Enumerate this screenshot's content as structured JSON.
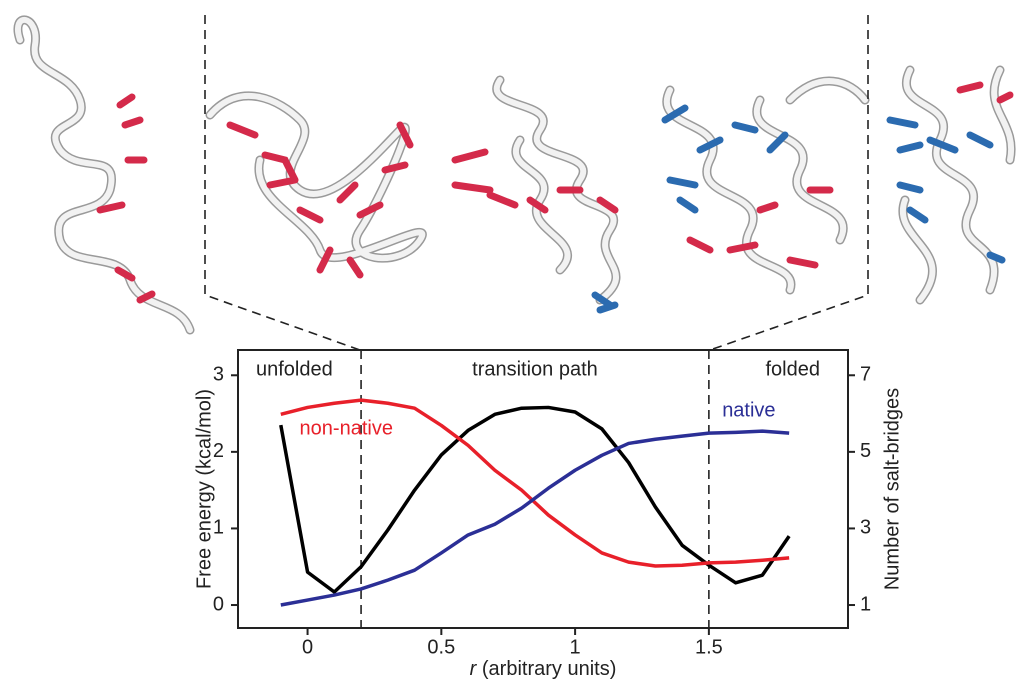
{
  "chart_data": {
    "type": "line",
    "y_label": "Free energy (kcal/mol)",
    "y2_label": "Number of salt-bridges",
    "x_label": {
      "var": "r",
      "text": "(arbitrary units)"
    },
    "x": [
      -0.1,
      0,
      0.1,
      0.2,
      0.3,
      0.4,
      0.5,
      0.6,
      0.7,
      0.8,
      0.9,
      1.0,
      1.1,
      1.2,
      1.3,
      1.4,
      1.5,
      1.6,
      1.7,
      1.8
    ],
    "xlim": [
      -0.26,
      2.02
    ],
    "xticks": [
      0,
      0.5,
      1,
      1.5
    ],
    "ylim": [
      -0.3,
      3.33
    ],
    "yticks": [
      0,
      1,
      2,
      3
    ],
    "y2lim": [
      0.4,
      7.66
    ],
    "y2ticks": [
      1,
      3,
      5,
      7
    ],
    "boundaries": [
      0.2,
      1.5
    ],
    "regions": [
      "unfolded",
      "transition path",
      "folded"
    ],
    "series": [
      {
        "color": "#000000",
        "values": [
          2.35,
          0.43,
          0.17,
          0.5,
          0.98,
          1.5,
          1.96,
          2.28,
          2.49,
          2.57,
          2.58,
          2.52,
          2.3,
          1.86,
          1.28,
          0.78,
          0.52,
          0.29,
          0.39,
          0.9
        ]
      },
      {
        "name": "non-native",
        "color": "#e8202a",
        "axis": "y2",
        "values": [
          5.98,
          6.16,
          6.27,
          6.35,
          6.27,
          6.14,
          5.69,
          5.17,
          4.52,
          4.0,
          3.35,
          2.83,
          2.36,
          2.12,
          2.02,
          2.04,
          2.1,
          2.12,
          2.17,
          2.23
        ]
      },
      {
        "name": "native",
        "color": "#2b2f96",
        "axis": "y2",
        "values": [
          1.0,
          1.13,
          1.26,
          1.42,
          1.65,
          1.91,
          2.36,
          2.83,
          3.11,
          3.53,
          4.05,
          4.52,
          4.91,
          5.22,
          5.33,
          5.41,
          5.49,
          5.51,
          5.54,
          5.49
        ]
      }
    ]
  }
}
